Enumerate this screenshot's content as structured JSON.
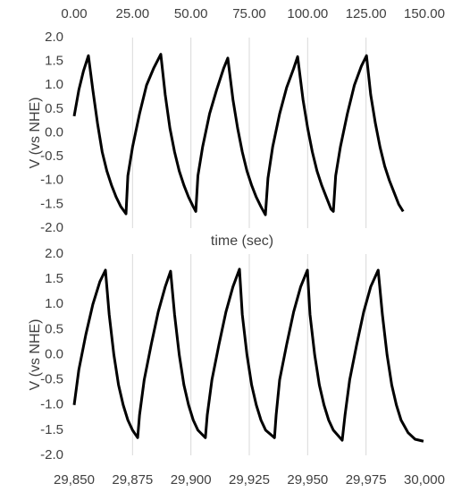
{
  "chart_data": [
    {
      "type": "line",
      "xlabel": "time (sec)",
      "ylabel": "V (vs NHE)",
      "xaxis_position": "top",
      "grid": "x",
      "x": [
        0,
        2,
        4,
        6.1,
        8,
        10,
        12,
        14,
        16,
        18,
        20,
        22.2,
        23,
        25,
        28,
        31,
        34,
        37.1,
        39,
        41,
        43,
        45,
        47,
        49,
        51,
        52.1,
        53,
        55,
        58,
        61,
        64,
        65.8,
        68,
        70,
        72,
        74,
        76,
        78,
        80,
        81.9,
        83,
        85,
        88,
        91,
        94,
        95.7,
        98,
        100,
        102,
        104,
        106,
        108,
        110,
        111,
        112,
        114,
        117,
        120,
        123,
        125.2,
        127,
        129,
        131,
        133,
        135,
        137,
        139,
        140.9
      ],
      "series": [
        {
          "color": "#000000",
          "values": [
            0.35,
            0.9,
            1.3,
            1.62,
            0.9,
            0.2,
            -0.4,
            -0.8,
            -1.1,
            -1.35,
            -1.55,
            -1.7,
            -0.9,
            -0.3,
            0.4,
            1.0,
            1.35,
            1.65,
            0.8,
            0.1,
            -0.4,
            -0.8,
            -1.1,
            -1.35,
            -1.55,
            -1.65,
            -0.9,
            -0.3,
            0.4,
            0.9,
            1.35,
            1.57,
            0.7,
            0.1,
            -0.4,
            -0.8,
            -1.1,
            -1.35,
            -1.55,
            -1.72,
            -0.95,
            -0.3,
            0.4,
            0.95,
            1.35,
            1.6,
            0.7,
            0.1,
            -0.4,
            -0.8,
            -1.1,
            -1.35,
            -1.6,
            -1.65,
            -0.9,
            -0.3,
            0.4,
            1.0,
            1.4,
            1.62,
            0.8,
            0.2,
            -0.3,
            -0.7,
            -1.0,
            -1.25,
            -1.5,
            -1.65
          ]
        }
      ],
      "xlim": [
        0,
        150
      ],
      "xticks": [
        {
          "value": 0,
          "label": "0.00"
        },
        {
          "value": 25,
          "label": "25.00"
        },
        {
          "value": 50,
          "label": "50.00"
        },
        {
          "value": 75,
          "label": "75.00"
        },
        {
          "value": 100,
          "label": "100.00"
        },
        {
          "value": 125,
          "label": "125.00"
        },
        {
          "value": 150,
          "label": "150.00"
        }
      ],
      "ylim": [
        -2,
        2
      ],
      "yticks": [
        {
          "value": -2,
          "label": "-2.0"
        },
        -1.5,
        {
          "value": -1,
          "label": "-1.0"
        },
        -0.5,
        {
          "value": 0,
          "label": "0.0"
        },
        0.5,
        {
          "value": 1,
          "label": "1.0"
        },
        1.5,
        {
          "value": 2,
          "label": "2.0"
        }
      ]
    },
    {
      "type": "line",
      "ylabel": "V (vs NHE)",
      "xaxis_position": "bottom",
      "grid": "x",
      "x": [
        29850,
        29852,
        29855,
        29858,
        29861,
        29863.4,
        29865,
        29867,
        29869,
        29871,
        29873,
        29875,
        29877.2,
        29878,
        29880,
        29883,
        29886,
        29889,
        29891.3,
        29893,
        29895,
        29897,
        29899,
        29901,
        29903,
        29906.2,
        29907,
        29909,
        29912,
        29915,
        29918,
        29920.8,
        29922,
        29924,
        29926,
        29928,
        29930,
        29932,
        29935.8,
        29936.5,
        29938,
        29941,
        29944,
        29947,
        29949.9,
        29951,
        29953,
        29955,
        29957,
        29959,
        29961,
        29964.8,
        29966,
        29968,
        29971,
        29974,
        29977,
        29980.2,
        29982,
        29984,
        29986,
        29988,
        29990,
        29993,
        29996,
        29999.6
      ],
      "series": [
        {
          "color": "#000000",
          "values": [
            -1.0,
            -0.3,
            0.4,
            1.0,
            1.45,
            1.68,
            0.8,
            0.0,
            -0.6,
            -1.0,
            -1.3,
            -1.5,
            -1.65,
            -1.2,
            -0.5,
            0.2,
            0.85,
            1.35,
            1.66,
            0.8,
            0.0,
            -0.6,
            -1.0,
            -1.3,
            -1.5,
            -1.65,
            -1.2,
            -0.5,
            0.2,
            0.85,
            1.35,
            1.7,
            0.8,
            0.0,
            -0.6,
            -1.0,
            -1.3,
            -1.5,
            -1.65,
            -1.2,
            -0.5,
            0.2,
            0.85,
            1.35,
            1.68,
            0.8,
            0.0,
            -0.6,
            -1.0,
            -1.3,
            -1.5,
            -1.7,
            -1.2,
            -0.5,
            0.2,
            0.85,
            1.35,
            1.68,
            0.8,
            0.0,
            -0.6,
            -1.0,
            -1.3,
            -1.55,
            -1.68,
            -1.72
          ]
        }
      ],
      "xlim": [
        29850,
        30000
      ],
      "xticks": [
        {
          "value": 29850,
          "label": "29,850"
        },
        {
          "value": 29875,
          "label": "29,875"
        },
        {
          "value": 29900,
          "label": "29,900"
        },
        {
          "value": 29925,
          "label": "29,925"
        },
        {
          "value": 29950,
          "label": "29,950"
        },
        {
          "value": 29975,
          "label": "29,975"
        },
        {
          "value": 30000,
          "label": "30,000"
        }
      ],
      "ylim": [
        -2,
        2
      ],
      "yticks": [
        {
          "value": -2,
          "label": "-2.0"
        },
        -1.5,
        {
          "value": -1,
          "label": "-1.0"
        },
        -0.5,
        {
          "value": 0,
          "label": "0.0"
        },
        0.5,
        {
          "value": 1,
          "label": "1.0"
        },
        1.5,
        {
          "value": 2,
          "label": "2.0"
        }
      ]
    }
  ]
}
